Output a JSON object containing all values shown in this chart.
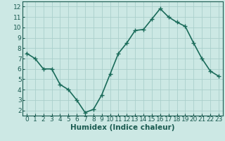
{
  "x": [
    0,
    1,
    2,
    3,
    4,
    5,
    6,
    7,
    8,
    9,
    10,
    11,
    12,
    13,
    14,
    15,
    16,
    17,
    18,
    19,
    20,
    21,
    22,
    23
  ],
  "y": [
    7.5,
    7.0,
    6.0,
    6.0,
    4.5,
    4.0,
    3.0,
    1.8,
    2.1,
    3.5,
    5.5,
    7.5,
    8.5,
    9.7,
    9.8,
    10.8,
    11.8,
    11.0,
    10.5,
    10.1,
    8.5,
    7.0,
    5.8,
    5.3
  ],
  "line_color": "#1a6b5a",
  "marker": "+",
  "marker_size": 4,
  "bg_color": "#cce8e4",
  "grid_color": "#aacfcb",
  "xlabel": "Humidex (Indice chaleur)",
  "xlim": [
    -0.5,
    23.5
  ],
  "ylim": [
    1.5,
    12.5
  ],
  "yticks": [
    2,
    3,
    4,
    5,
    6,
    7,
    8,
    9,
    10,
    11,
    12
  ],
  "xticks": [
    0,
    1,
    2,
    3,
    4,
    5,
    6,
    7,
    8,
    9,
    10,
    11,
    12,
    13,
    14,
    15,
    16,
    17,
    18,
    19,
    20,
    21,
    22,
    23
  ],
  "xlabel_fontsize": 7.5,
  "tick_fontsize": 6.5,
  "linewidth": 1.2,
  "label_color": "#1a5a50"
}
